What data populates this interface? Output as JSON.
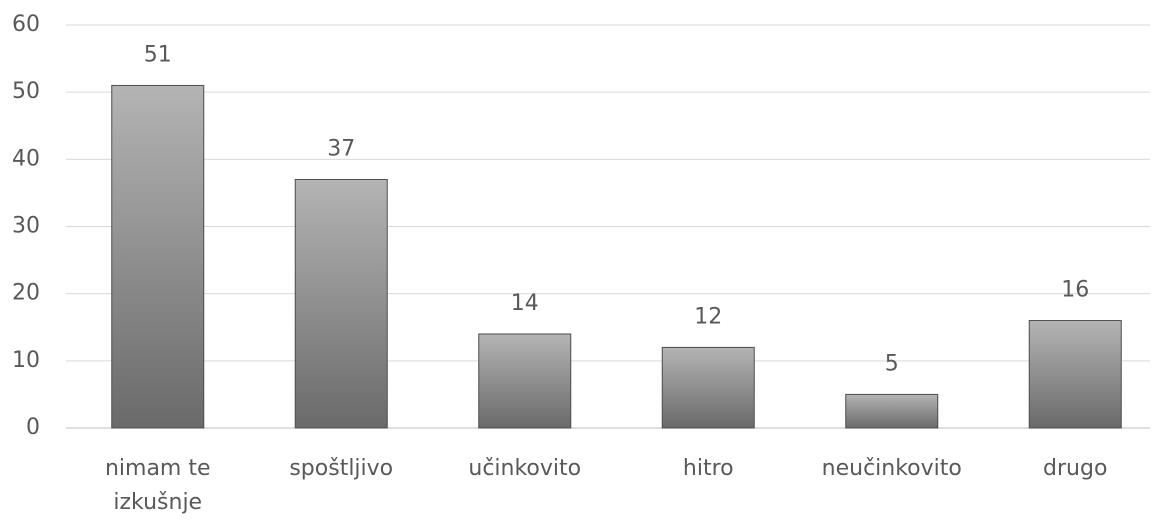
{
  "chart_data": {
    "type": "bar",
    "categories": [
      "nimam te izkušnje",
      "spoštljivo",
      "učinkovito",
      "hitro",
      "neučinkovito",
      "drugo"
    ],
    "values": [
      51,
      37,
      14,
      12,
      5,
      16
    ],
    "gradient": [
      "#b4b4b4",
      "#6a6a6a"
    ],
    "ylim": [
      0,
      60
    ],
    "yticks": [
      0,
      10,
      20,
      30,
      40,
      50,
      60
    ],
    "grid": true,
    "data_labels": true
  }
}
